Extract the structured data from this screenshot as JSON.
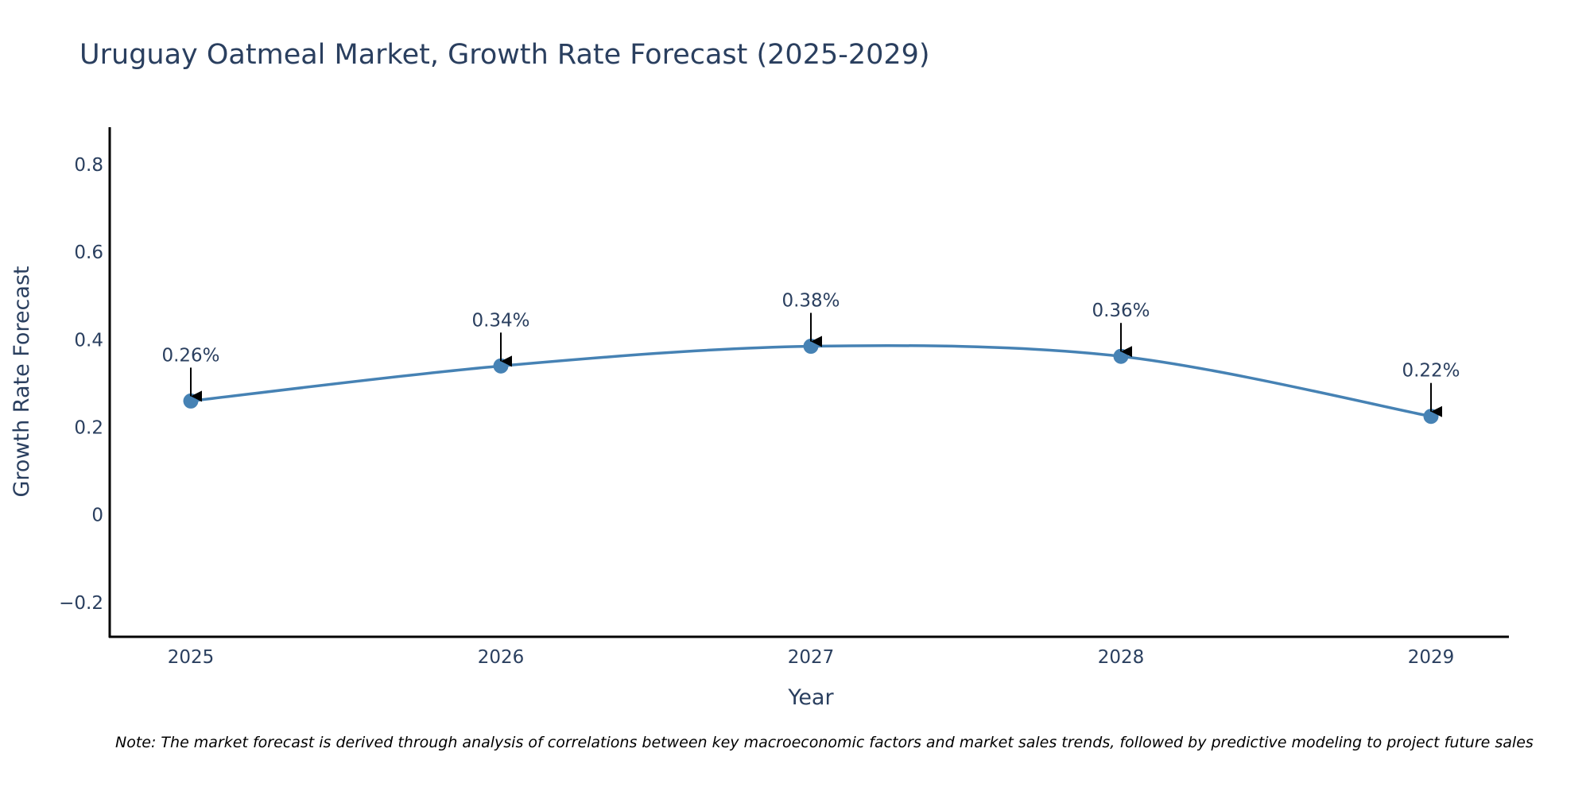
{
  "chart_data": {
    "type": "line",
    "title": "Uruguay Oatmeal Market, Growth Rate Forecast (2025-2029)",
    "xlabel": "Year",
    "ylabel": "Growth Rate Forecast",
    "categories": [
      "2025",
      "2026",
      "2027",
      "2028",
      "2029"
    ],
    "series": [
      {
        "name": "Growth Rate Forecast",
        "values": [
          0.26,
          0.34,
          0.385,
          0.362,
          0.225
        ],
        "labels": [
          "0.26%",
          "0.34%",
          "0.38%",
          "0.36%",
          "0.22%"
        ],
        "color": "#4682b4"
      }
    ],
    "ylim": [
      -0.28,
      0.885
    ],
    "yticks": [
      -0.2,
      0,
      0.2,
      0.4,
      0.6,
      0.8
    ],
    "ytick_labels": [
      "−0.2",
      "0",
      "0.2",
      "0.4",
      "0.6",
      "0.8"
    ],
    "grid": false,
    "line_shape": "spline",
    "annotation_arrow_color": "#000000",
    "note": "Note: The market forecast is derived through analysis of correlations between key macroeconomic factors and market sales trends, followed by predictive modeling to project future sales"
  }
}
